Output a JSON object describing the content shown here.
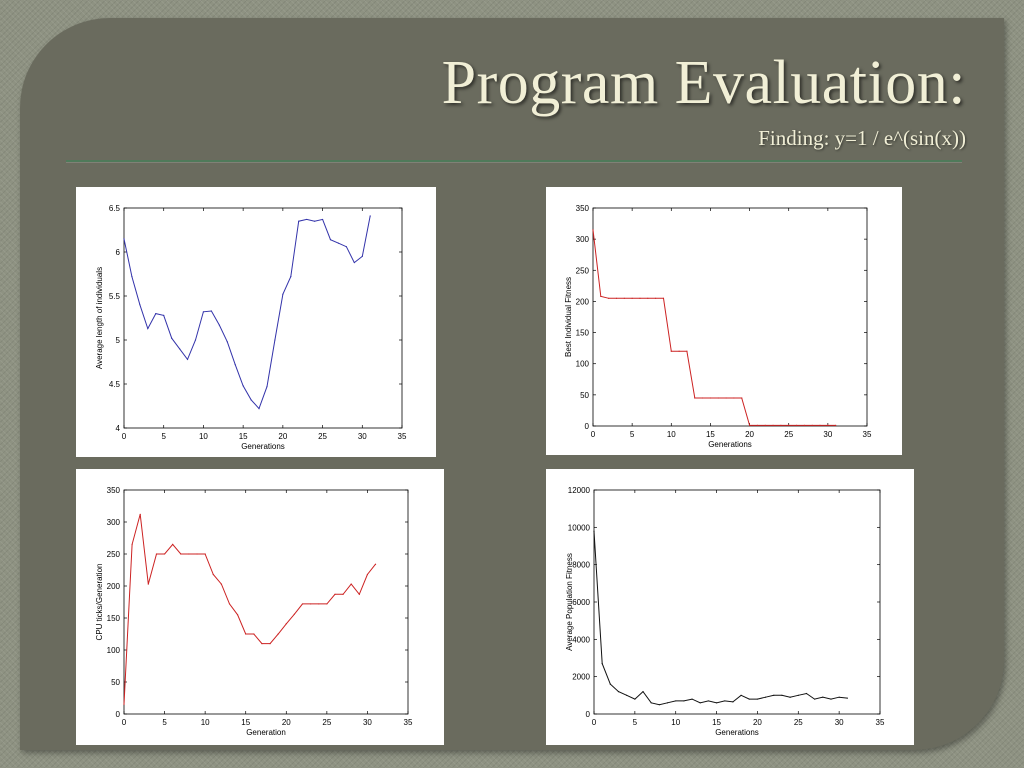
{
  "slide": {
    "title": "Program Evaluation:",
    "subtitle": "Finding:  y=1 / e^(sin(x))"
  },
  "chart_data": [
    {
      "type": "line",
      "color": "#3333aa",
      "xlabel": "Generations",
      "ylabel": "Average length of individuals",
      "xlim": [
        0,
        35
      ],
      "ylim": [
        4,
        6.5
      ],
      "xticks": [
        0,
        5,
        10,
        15,
        20,
        25,
        30,
        35
      ],
      "yticks": [
        4,
        4.5,
        5,
        5.5,
        6,
        6.5
      ],
      "x": [
        0,
        1,
        2,
        3,
        4,
        5,
        6,
        7,
        8,
        9,
        10,
        11,
        12,
        13,
        14,
        15,
        16,
        17,
        18,
        19,
        20,
        21,
        22,
        23,
        24,
        25,
        26,
        27,
        28,
        29,
        30,
        31
      ],
      "y": [
        6.15,
        5.72,
        5.4,
        5.13,
        5.3,
        5.28,
        5.02,
        4.9,
        4.78,
        5.0,
        5.32,
        5.33,
        5.17,
        4.98,
        4.72,
        4.48,
        4.32,
        4.22,
        4.47,
        5.0,
        5.52,
        5.72,
        6.35,
        6.37,
        6.35,
        6.37,
        6.14,
        6.1,
        6.06,
        5.88,
        5.95,
        6.41
      ]
    },
    {
      "type": "line",
      "color": "#cc2222",
      "xlabel": "Generations",
      "ylabel": "Best Individual Fitness",
      "xlim": [
        0,
        35
      ],
      "ylim": [
        0,
        350
      ],
      "xticks": [
        0,
        5,
        10,
        15,
        20,
        25,
        30,
        35
      ],
      "yticks": [
        0,
        50,
        100,
        150,
        200,
        250,
        300,
        350
      ],
      "x": [
        0,
        1,
        2,
        3,
        4,
        5,
        6,
        7,
        8,
        9,
        10,
        11,
        12,
        13,
        14,
        15,
        16,
        17,
        18,
        19,
        20,
        21,
        22,
        23,
        24,
        25,
        26,
        27,
        28,
        29,
        30,
        31
      ],
      "y": [
        315,
        208,
        205,
        205,
        205,
        205,
        205,
        205,
        205,
        205,
        120,
        120,
        120,
        45,
        45,
        45,
        45,
        45,
        45,
        45,
        1,
        1,
        1,
        1,
        1,
        1,
        1,
        1,
        1,
        1,
        1,
        1
      ]
    },
    {
      "type": "line",
      "color": "#cc2222",
      "xlabel": "Generation",
      "ylabel": "CPU ticks/Generation",
      "xlim": [
        0,
        35
      ],
      "ylim": [
        0,
        350
      ],
      "xticks": [
        0,
        5,
        10,
        15,
        20,
        25,
        30,
        35
      ],
      "yticks": [
        0,
        50,
        100,
        150,
        200,
        250,
        300,
        350
      ],
      "x": [
        0,
        1,
        2,
        3,
        4,
        5,
        6,
        7,
        8,
        9,
        10,
        11,
        12,
        13,
        14,
        15,
        16,
        17,
        18,
        19,
        20,
        21,
        22,
        23,
        24,
        25,
        26,
        27,
        28,
        29,
        30,
        31
      ],
      "y": [
        15,
        265,
        312,
        203,
        250,
        250,
        265,
        250,
        250,
        250,
        250,
        218,
        203,
        172,
        155,
        125,
        125,
        110,
        110,
        125,
        141,
        156,
        172,
        172,
        172,
        172,
        187,
        187,
        203,
        187,
        218,
        234
      ]
    },
    {
      "type": "line",
      "color": "#111111",
      "xlabel": "Generations",
      "ylabel": "Average Population Fitness",
      "xlim": [
        0,
        35
      ],
      "ylim": [
        0,
        12000
      ],
      "xticks": [
        0,
        5,
        10,
        15,
        20,
        25,
        30,
        35
      ],
      "yticks": [
        0,
        2000,
        4000,
        6000,
        8000,
        10000,
        12000
      ],
      "x": [
        0,
        1,
        2,
        3,
        4,
        5,
        6,
        7,
        8,
        9,
        10,
        11,
        12,
        13,
        14,
        15,
        16,
        17,
        18,
        19,
        20,
        21,
        22,
        23,
        24,
        25,
        26,
        27,
        28,
        29,
        30,
        31
      ],
      "y": [
        9800,
        2700,
        1600,
        1200,
        1000,
        800,
        1200,
        600,
        500,
        600,
        700,
        700,
        800,
        600,
        700,
        600,
        700,
        650,
        1000,
        800,
        800,
        900,
        1000,
        1000,
        900,
        1000,
        1100,
        800,
        900,
        800,
        900,
        850
      ]
    }
  ]
}
